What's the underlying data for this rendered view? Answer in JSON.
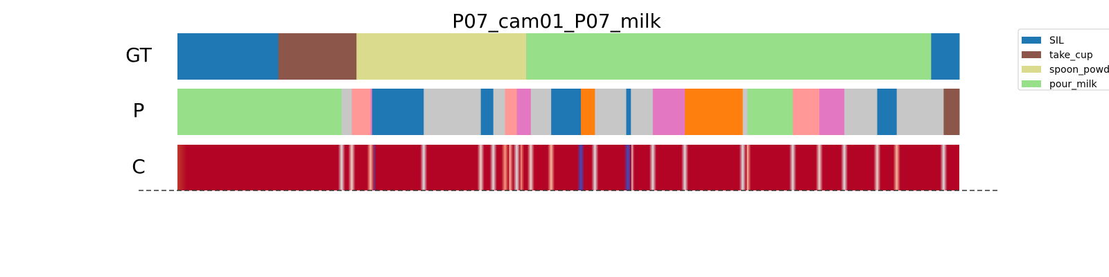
{
  "chart_data": {
    "type": "segmentation",
    "title": "P07_cam01_P07_milk",
    "x_range": [
      0,
      1000
    ],
    "row_labels": [
      "GT",
      "P",
      "C"
    ],
    "legend": {
      "placement": "top-right",
      "entries": [
        {
          "label": "SIL",
          "color": "#1f77b4"
        },
        {
          "label": "take_cup",
          "color": "#8c564b"
        },
        {
          "label": "spoon_powd",
          "color": "#dbdb8d"
        },
        {
          "label": "pour_milk",
          "color": "#98df8a"
        }
      ]
    },
    "gt_segments": [
      {
        "action": "SIL",
        "start": 0,
        "end": 129,
        "color": "#1f77b4"
      },
      {
        "action": "take_cup",
        "start": 129,
        "end": 229,
        "color": "#8c564b"
      },
      {
        "action": "spoon_powd",
        "start": 229,
        "end": 446,
        "color": "#dbdb8d"
      },
      {
        "action": "pour_milk",
        "start": 446,
        "end": 964,
        "color": "#98df8a"
      },
      {
        "action": "SIL",
        "start": 964,
        "end": 1000,
        "color": "#1f77b4"
      }
    ],
    "pred_segments": [
      {
        "start": 0,
        "end": 210,
        "color": "#98df8a"
      },
      {
        "start": 210,
        "end": 223,
        "color": "#c7c7c7"
      },
      {
        "start": 223,
        "end": 247,
        "color": "#ff9896"
      },
      {
        "start": 247,
        "end": 249,
        "color": "#e377c2"
      },
      {
        "start": 249,
        "end": 315,
        "color": "#1f77b4"
      },
      {
        "start": 315,
        "end": 388,
        "color": "#c7c7c7"
      },
      {
        "start": 388,
        "end": 404,
        "color": "#1f77b4"
      },
      {
        "start": 404,
        "end": 419,
        "color": "#c7c7c7"
      },
      {
        "start": 419,
        "end": 434,
        "color": "#ff9896"
      },
      {
        "start": 434,
        "end": 452,
        "color": "#e377c2"
      },
      {
        "start": 452,
        "end": 478,
        "color": "#c7c7c7"
      },
      {
        "start": 478,
        "end": 516,
        "color": "#1f77b4"
      },
      {
        "start": 516,
        "end": 534,
        "color": "#ff7f0e"
      },
      {
        "start": 534,
        "end": 574,
        "color": "#c7c7c7"
      },
      {
        "start": 574,
        "end": 580,
        "color": "#1f77b4"
      },
      {
        "start": 580,
        "end": 608,
        "color": "#c7c7c7"
      },
      {
        "start": 608,
        "end": 649,
        "color": "#e377c2"
      },
      {
        "start": 649,
        "end": 723,
        "color": "#ff7f0e"
      },
      {
        "start": 723,
        "end": 729,
        "color": "#c7c7c7"
      },
      {
        "start": 729,
        "end": 787,
        "color": "#98df8a"
      },
      {
        "start": 787,
        "end": 821,
        "color": "#ff9896"
      },
      {
        "start": 821,
        "end": 853,
        "color": "#e377c2"
      },
      {
        "start": 853,
        "end": 895,
        "color": "#c7c7c7"
      },
      {
        "start": 895,
        "end": 920,
        "color": "#1f77b4"
      },
      {
        "start": 920,
        "end": 980,
        "color": "#c7c7c7"
      },
      {
        "start": 980,
        "end": 1000,
        "color": "#8c564b"
      }
    ],
    "confidence_row": {
      "base_color": "#b40426",
      "low_points": [
        {
          "at": 210,
          "color": "#dddcdc"
        },
        {
          "at": 223,
          "color": "#e9d5cb"
        },
        {
          "at": 247,
          "color": "#f7b89c"
        },
        {
          "at": 249,
          "color": "#3b4cc0"
        },
        {
          "at": 315,
          "color": "#dddcdc"
        },
        {
          "at": 388,
          "color": "#e9d5cb"
        },
        {
          "at": 404,
          "color": "#dddcdc"
        },
        {
          "at": 419,
          "color": "#f4987a"
        },
        {
          "at": 425,
          "color": "#f7b89c"
        },
        {
          "at": 434,
          "color": "#dddcdc"
        },
        {
          "at": 439,
          "color": "#f4987a"
        },
        {
          "at": 452,
          "color": "#e9d5cb"
        },
        {
          "at": 478,
          "color": "#f7b89c"
        },
        {
          "at": 516,
          "color": "#3b4cc0"
        },
        {
          "at": 534,
          "color": "#dddcdc"
        },
        {
          "at": 576,
          "color": "#3b4cc0"
        },
        {
          "at": 580,
          "color": "#e9d5cb"
        },
        {
          "at": 608,
          "color": "#dddcdc"
        },
        {
          "at": 649,
          "color": "#dddcdc"
        },
        {
          "at": 723,
          "color": "#dddcdc"
        },
        {
          "at": 729,
          "color": "#f7b89c"
        },
        {
          "at": 787,
          "color": "#dddcdc"
        },
        {
          "at": 821,
          "color": "#e9d5cb"
        },
        {
          "at": 853,
          "color": "#dddcdc"
        },
        {
          "at": 895,
          "color": "#e9d5cb"
        },
        {
          "at": 920,
          "color": "#f7b89c"
        },
        {
          "at": 980,
          "color": "#dddcdc"
        }
      ]
    },
    "baseline": {
      "style": "dashed",
      "color": "#333333"
    }
  }
}
